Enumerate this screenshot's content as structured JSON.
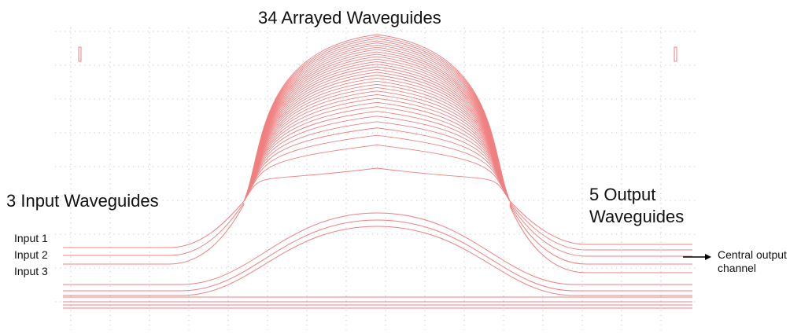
{
  "title": "34 Arrayed  Waveguides",
  "labels": {
    "input_group": "3 Input Waveguides",
    "output_group_line1": "5 Output",
    "output_group_line2": "Waveguides",
    "input1": "Input 1",
    "input2": "Input 2",
    "input3": "Input 3",
    "central_line1": "Central output",
    "central_line2": "channel"
  },
  "diagram": {
    "arrayed_waveguide_count": 34,
    "input_waveguide_count": 3,
    "output_waveguide_count": 5,
    "waveguide_color": "#f08080",
    "grid_color": "#b4b4b4"
  }
}
